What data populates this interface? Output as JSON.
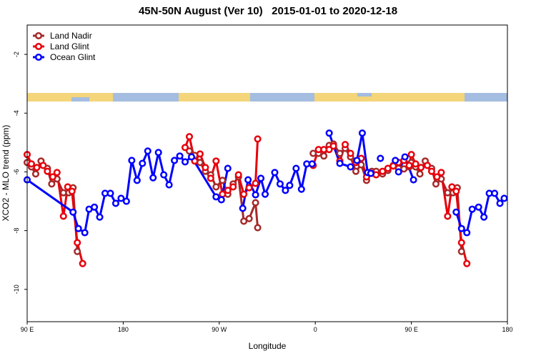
{
  "chart_data": {
    "type": "line",
    "title": "45N-50N August (Ver 10)   2015-01-01 to 2020-12-18",
    "x_label": "Longitude",
    "y_label": "XCO2 - MLO trend (ppm)",
    "xlim": [
      90,
      540
    ],
    "ylim": [
      -11.1,
      -1.0
    ],
    "xticks": [
      {
        "value": 90,
        "label": "90 E"
      },
      180,
      {
        "value": 270,
        "label": "90 W"
      },
      {
        "value": 360,
        "label": "0"
      },
      {
        "value": 450,
        "label": "90 E"
      },
      {
        "value": 540,
        "label": "180"
      }
    ],
    "yticks": [
      -2,
      -4,
      -6,
      -8,
      -10
    ],
    "legend": "top-left",
    "series": [
      {
        "name": "Land Nadir",
        "color": "#a52a2a",
        "x": [
          90,
          94,
          98,
          103,
          109,
          113,
          118,
          124,
          129,
          133,
          137,
          null,
          242,
          247,
          252,
          257,
          262,
          267,
          273,
          278,
          283,
          288,
          293,
          298,
          304,
          306,
          null,
          358,
          363,
          368,
          373,
          377,
          383,
          388,
          393,
          398,
          403,
          408,
          413,
          417,
          423,
          428,
          433,
          438,
          443,
          448,
          450,
          454,
          458,
          463,
          469,
          473,
          478,
          484,
          489,
          493,
          497
        ],
        "values": [
          -5.68,
          -5.83,
          -6.07,
          -5.63,
          -5.88,
          -6.41,
          -6.24,
          -6.71,
          -6.71,
          -6.54,
          -8.71,
          null,
          -5.29,
          -5.44,
          -5.68,
          -5.98,
          -6.1,
          -6.51,
          -6.29,
          -6.76,
          -6.41,
          -6.17,
          -7.68,
          -7.59,
          -7.05,
          -7.9,
          null,
          -5.37,
          -5.37,
          -5.46,
          -5.1,
          -5.05,
          -5.37,
          -5.2,
          -5.49,
          -5.98,
          -5.76,
          -6.29,
          -5.98,
          -5.98,
          -6.07,
          -5.95,
          -5.78,
          -5.88,
          -5.9,
          -5.83,
          -5.68,
          -5.83,
          -6.07,
          -5.63,
          -5.88,
          -6.41,
          -6.24,
          -6.71,
          -6.71,
          -6.54,
          -8.71
        ]
      },
      {
        "name": "Land Glint",
        "color": "#e8000b",
        "x": [
          90,
          94,
          99,
          105,
          109,
          114,
          118,
          124,
          128,
          132,
          137,
          142,
          null,
          238,
          242,
          247,
          252,
          257,
          262,
          267,
          273,
          278,
          283,
          288,
          293,
          298,
          304,
          306,
          null,
          358,
          363,
          368,
          373,
          377,
          383,
          388,
          393,
          398,
          403,
          408,
          413,
          417,
          423,
          428,
          433,
          438,
          443,
          448,
          450,
          454,
          459,
          465,
          469,
          474,
          478,
          484,
          488,
          492,
          497,
          502
        ],
        "values": [
          -5.41,
          -5.73,
          -5.85,
          -5.78,
          -5.98,
          -6.17,
          -6.02,
          -7.51,
          -6.51,
          -6.66,
          -8.41,
          -9.12,
          null,
          -5.17,
          -4.8,
          -5.63,
          -5.39,
          -5.85,
          -6.22,
          -5.63,
          -6.76,
          -6.63,
          -6.51,
          -6.1,
          -6.76,
          -6.54,
          -6.39,
          -4.88,
          null,
          -5.78,
          -5.24,
          -5.24,
          -5.24,
          -5.12,
          -5.63,
          -5.07,
          -5.37,
          -5.68,
          -5.54,
          -6.17,
          -6.05,
          -6.1,
          -5.98,
          -5.88,
          -5.8,
          -5.68,
          -5.61,
          -5.78,
          -5.41,
          -5.73,
          -5.85,
          -5.78,
          -5.98,
          -6.17,
          -6.02,
          -7.51,
          -6.51,
          -6.66,
          -8.41,
          -9.12
        ]
      },
      {
        "name": "Ocean Glint",
        "color": "#0000ff",
        "x": [
          90,
          133,
          138,
          144,
          148,
          153,
          158,
          163,
          168,
          173,
          178,
          183,
          188,
          193,
          198,
          203,
          208,
          213,
          218,
          223,
          228,
          233,
          238,
          244,
          267,
          272,
          278,
          null,
          292,
          297,
          304,
          309,
          313,
          322,
          327,
          332,
          336,
          342,
          347,
          352,
          357,
          null,
          373,
          383,
          393,
          399,
          404,
          409,
          412,
          null,
          421,
          null,
          435,
          438,
          444,
          452,
          null,
          492,
          497,
          502,
          507,
          513,
          518,
          523,
          528,
          533,
          537
        ],
        "values": [
          -6.27,
          -7.37,
          -7.93,
          -8.07,
          -7.27,
          -7.2,
          -7.54,
          -6.73,
          -6.73,
          -7.07,
          -6.9,
          -7.0,
          -5.61,
          -6.29,
          -5.71,
          -5.29,
          -6.2,
          -5.34,
          -6.1,
          -6.44,
          -5.61,
          -5.46,
          -5.66,
          -5.49,
          -6.85,
          -6.95,
          -5.88,
          null,
          -7.24,
          -6.27,
          -6.78,
          -6.22,
          -6.76,
          -6.02,
          -6.41,
          -6.63,
          -6.46,
          -5.88,
          -6.59,
          -5.73,
          -5.73,
          null,
          -4.68,
          -5.71,
          -5.83,
          -5.61,
          -4.68,
          -6.02,
          -6.05,
          null,
          -5.54,
          null,
          -5.61,
          -6.0,
          -5.49,
          -6.27,
          null,
          -7.37,
          -7.93,
          -8.07,
          -7.27,
          -7.2,
          -7.54,
          -6.73,
          -6.73,
          -7.07,
          -6.9
        ]
      }
    ]
  }
}
